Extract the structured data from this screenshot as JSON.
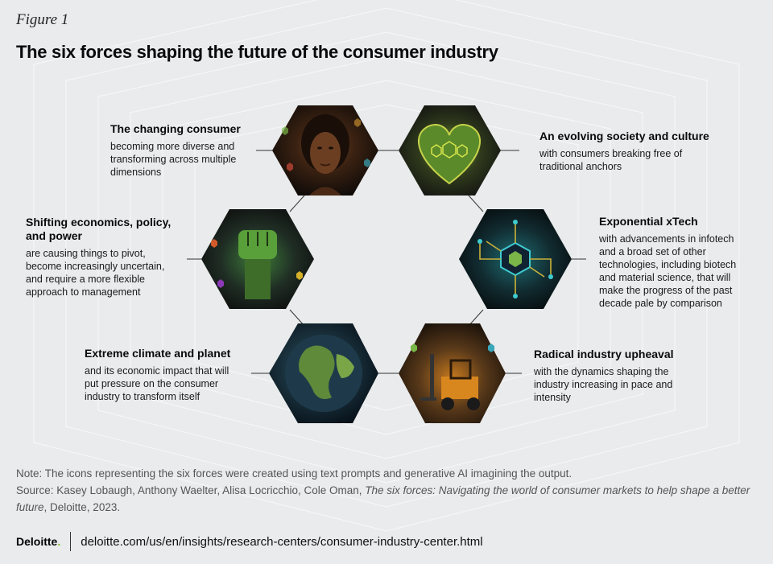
{
  "figure_label": "Figure 1",
  "title": "The six forces shaping the future of the consumer industry",
  "forces": [
    {
      "title": "The changing consumer",
      "desc": "becoming more diverse and transforming across multiple dimensions"
    },
    {
      "title": "An evolving society and culture",
      "desc": "with consumers breaking free of traditional anchors"
    },
    {
      "title": "Shifting economics, policy, and power",
      "desc": "are causing things to pivot, become increasingly uncertain, and require a more flexible approach to management"
    },
    {
      "title": "Exponential xTech",
      "desc": "with advancements in infotech and a broad set of other technologies, including biotech and material science, that will make the progress of the past decade pale by comparison"
    },
    {
      "title": "Extreme climate and planet",
      "desc": "and its economic impact that will put pressure on the consumer industry to transform itself"
    },
    {
      "title": "Radical industry upheaval",
      "desc": "with the dynamics shaping the industry increasing in pace and intensity"
    }
  ],
  "note": "Note: The icons representing the six forces were created using text prompts and generative AI imagining the output.",
  "source_prefix": "Source: Kasey Lobaugh, Anthony Waelter, Alisa Locricchio, Cole Oman, ",
  "source_title": "The six forces: Navigating the world of consumer markets to help shape a better future",
  "source_suffix": ", Deloitte, 2023.",
  "logo": "Deloitte",
  "logo_dot": ".",
  "url": "deloitte.com/us/en/insights/research-centers/consumer-industry-center.html",
  "colors": {
    "accent_green": "#86bc25",
    "background": "#e9ebec"
  },
  "icons": [
    "woman-portrait-icon",
    "heart-icon",
    "raised-fist-icon",
    "circuit-icon",
    "globe-icon",
    "forklift-icon"
  ]
}
